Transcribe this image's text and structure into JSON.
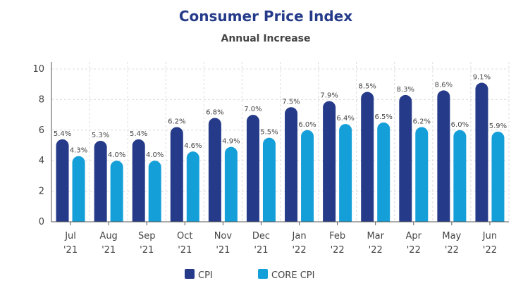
{
  "colors": {
    "cpi": "#253b8a",
    "core": "#159fd9"
  },
  "chart_data": {
    "type": "bar",
    "title": "Consumer Price Index",
    "subtitle": "Annual Increase",
    "xlabel": "",
    "ylabel": "",
    "ylim": [
      0,
      10
    ],
    "yticks": [
      "0",
      "2",
      "4",
      "6",
      "8",
      "10"
    ],
    "grid": true,
    "legend_position": "bottom-center",
    "categories": [
      [
        "Jul",
        "'21"
      ],
      [
        "Aug",
        "'21"
      ],
      [
        "Sep",
        "'21"
      ],
      [
        "Oct",
        "'21"
      ],
      [
        "Nov",
        "'21"
      ],
      [
        "Dec",
        "'21"
      ],
      [
        "Jan",
        "'22"
      ],
      [
        "Feb",
        "'22"
      ],
      [
        "Mar",
        "'22"
      ],
      [
        "Apr",
        "'22"
      ],
      [
        "May",
        "'22"
      ],
      [
        "Jun",
        "'22"
      ]
    ],
    "series": [
      {
        "name": "CPI",
        "values": [
          5.4,
          5.3,
          5.4,
          6.2,
          6.8,
          7.0,
          7.5,
          7.9,
          8.5,
          8.3,
          8.6,
          9.1
        ],
        "labels": [
          "5.4%",
          "5.3%",
          "5.4%",
          "6.2%",
          "6.8%",
          "7.0%",
          "7.5%",
          "7.9%",
          "8.5%",
          "8.3%",
          "8.6%",
          "9.1%"
        ]
      },
      {
        "name": "CORE CPI",
        "values": [
          4.3,
          4.0,
          4.0,
          4.6,
          4.9,
          5.5,
          6.0,
          6.4,
          6.5,
          6.2,
          6.0,
          5.9
        ],
        "labels": [
          "4.3%",
          "4.0%",
          "4.0%",
          "4.6%",
          "4.9%",
          "5.5%",
          "6.0%",
          "6.4%",
          "6.5%",
          "6.2%",
          "6.0%",
          "5.9%"
        ]
      }
    ]
  }
}
